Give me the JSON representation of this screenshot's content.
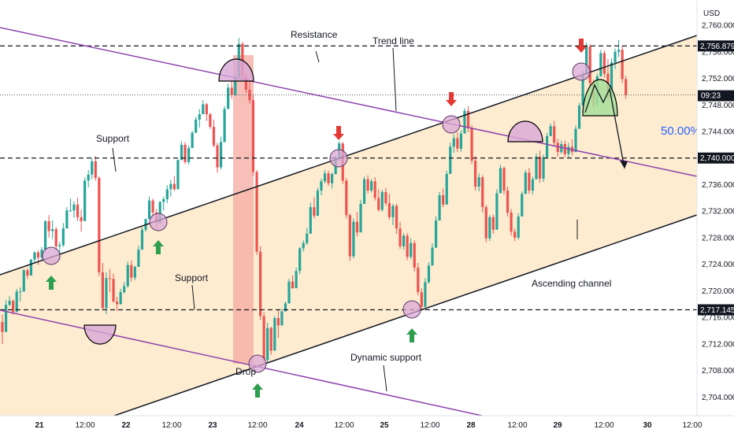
{
  "chart_data": {
    "type": "candlestick",
    "currency": "USD",
    "y_ticks": [
      "2,760.000",
      "2,756.000",
      "2,752.000",
      "2,748.000",
      "2,744.000",
      "2,740.000",
      "2,736.000",
      "2,732.000",
      "2,728.000",
      "2,724.000",
      "2,720.000",
      "2,716.000",
      "2,712.000",
      "2,708.000",
      "2,704.000"
    ],
    "y_range": [
      2701.2,
      2763.8
    ],
    "x_ticks": [
      "21",
      "12:00",
      "22",
      "12:00",
      "23",
      "12:00",
      "24",
      "12:00",
      "25",
      "12:00",
      "28",
      "12:00",
      "29",
      "12:00",
      "30",
      "12:00"
    ],
    "price_labels": [
      {
        "text": "2,756.879",
        "value": 2756.879,
        "style": "dark"
      },
      {
        "text": "2,740.000",
        "value": 2740.0,
        "style": "dark"
      },
      {
        "text": "2,717.145",
        "value": 2717.145,
        "style": "dark"
      }
    ],
    "current_price": {
      "value": 2749.5,
      "countdown": "09:23"
    },
    "percent_label": "50.00%",
    "horizontal_levels": [
      2756.879,
      2740.0,
      2717.145
    ],
    "annotations": [
      "Resistance",
      "Trend line",
      "Support",
      "Support",
      "Ascending channel",
      "Dynamic support",
      "Drop"
    ],
    "colors": {
      "up": "#26a69a",
      "down": "#ef5350",
      "channel_line": "#131722",
      "trend_line": "#8e44ad",
      "channel_fill": "#fde9c8",
      "highlight": "#f4a9a0",
      "marker_fill": "#d9a8d6",
      "projection_fill": "#a8e09a",
      "arrow_up": "#2e9e4f",
      "arrow_down": "#e53935",
      "percent_text": "#2962ff"
    },
    "candles": [
      [
        2715.3,
        2716.4,
        2712.0,
        2713.8
      ],
      [
        2713.8,
        2718.6,
        2713.8,
        2717.9
      ],
      [
        2717.9,
        2719.2,
        2717.7,
        2718.5
      ],
      [
        2718.5,
        2718.7,
        2716.4,
        2716.8
      ],
      [
        2716.8,
        2720.3,
        2716.8,
        2719.9
      ],
      [
        2719.9,
        2720.5,
        2718.4,
        2719.9
      ],
      [
        2719.9,
        2723.3,
        2719.9,
        2723.1
      ],
      [
        2723.1,
        2723.4,
        2721.8,
        2722.3
      ],
      [
        2722.3,
        2724.8,
        2722.3,
        2724.7
      ],
      [
        2724.7,
        2725.9,
        2724.3,
        2725.8
      ],
      [
        2725.8,
        2726.1,
        2723.9,
        2725.0
      ],
      [
        2725.0,
        2726.6,
        2724.7,
        2726.2
      ],
      [
        2726.2,
        2730.6,
        2726.2,
        2730.5
      ],
      [
        2730.5,
        2731.4,
        2728.0,
        2729.0
      ],
      [
        2729.0,
        2730.6,
        2727.8,
        2729.3
      ],
      [
        2729.3,
        2729.6,
        2726.1,
        2726.7
      ],
      [
        2726.7,
        2727.4,
        2724.7,
        2726.9
      ],
      [
        2726.9,
        2730.2,
        2726.6,
        2729.4
      ],
      [
        2729.4,
        2732.6,
        2729.4,
        2732.1
      ],
      [
        2732.1,
        2733.9,
        2731.9,
        2732.1
      ],
      [
        2732.1,
        2733.5,
        2731.0,
        2733.0
      ],
      [
        2733.0,
        2734.0,
        2730.5,
        2731.1
      ],
      [
        2731.1,
        2732.2,
        2728.9,
        2730.5
      ],
      [
        2730.5,
        2737.1,
        2730.5,
        2736.6
      ],
      [
        2736.6,
        2738.2,
        2735.6,
        2737.5
      ],
      [
        2737.5,
        2740.0,
        2736.8,
        2739.5
      ],
      [
        2739.5,
        2740.3,
        2736.6,
        2737.0
      ],
      [
        2737.0,
        2737.3,
        2722.2,
        2722.8
      ],
      [
        2722.8,
        2724.2,
        2717.2,
        2717.4
      ],
      [
        2717.4,
        2722.8,
        2716.5,
        2721.9
      ],
      [
        2721.9,
        2723.3,
        2719.8,
        2721.8
      ],
      [
        2721.8,
        2722.6,
        2718.2,
        2718.4
      ],
      [
        2718.4,
        2719.1,
        2717.0,
        2718.0
      ],
      [
        2718.0,
        2720.3,
        2717.9,
        2719.8
      ],
      [
        2719.8,
        2721.3,
        2719.6,
        2720.7
      ],
      [
        2720.7,
        2724.4,
        2720.5,
        2723.9
      ],
      [
        2723.9,
        2724.6,
        2721.4,
        2722.0
      ],
      [
        2722.0,
        2723.8,
        2721.6,
        2723.6
      ],
      [
        2723.6,
        2726.8,
        2723.6,
        2726.2
      ],
      [
        2726.2,
        2729.6,
        2726.2,
        2729.2
      ],
      [
        2729.2,
        2730.9,
        2728.9,
        2730.8
      ],
      [
        2730.8,
        2734.2,
        2730.8,
        2733.6
      ],
      [
        2733.6,
        2733.9,
        2731.1,
        2731.8
      ],
      [
        2731.8,
        2732.3,
        2729.4,
        2730.3
      ],
      [
        2730.3,
        2733.5,
        2730.1,
        2733.4
      ],
      [
        2733.4,
        2734.2,
        2732.1,
        2733.8
      ],
      [
        2733.8,
        2735.9,
        2733.2,
        2735.3
      ],
      [
        2735.3,
        2736.7,
        2734.2,
        2736.1
      ],
      [
        2736.1,
        2737.3,
        2735.0,
        2735.3
      ],
      [
        2735.3,
        2739.8,
        2735.3,
        2739.7
      ],
      [
        2739.7,
        2742.5,
        2739.7,
        2742.0
      ],
      [
        2742.0,
        2742.4,
        2739.1,
        2739.4
      ],
      [
        2739.4,
        2741.9,
        2739.0,
        2741.5
      ],
      [
        2741.5,
        2744.1,
        2741.5,
        2743.8
      ],
      [
        2743.8,
        2746.2,
        2743.8,
        2745.8
      ],
      [
        2745.8,
        2747.4,
        2744.6,
        2746.6
      ],
      [
        2746.6,
        2748.7,
        2746.6,
        2748.1
      ],
      [
        2748.1,
        2748.3,
        2745.6,
        2746.6
      ],
      [
        2746.6,
        2746.8,
        2744.4,
        2744.7
      ],
      [
        2744.7,
        2745.8,
        2741.6,
        2741.9
      ],
      [
        2741.9,
        2742.3,
        2737.8,
        2738.6
      ],
      [
        2738.6,
        2743.2,
        2738.3,
        2742.4
      ],
      [
        2742.4,
        2747.8,
        2742.4,
        2747.4
      ],
      [
        2747.4,
        2751.2,
        2747.4,
        2750.6
      ],
      [
        2750.6,
        2751.8,
        2748.9,
        2749.5
      ],
      [
        2749.5,
        2752.7,
        2749.4,
        2752.1
      ],
      [
        2752.1,
        2758.1,
        2752.1,
        2757.2
      ],
      [
        2757.2,
        2757.5,
        2751.8,
        2752.3
      ],
      [
        2752.3,
        2752.8,
        2749.8,
        2750.3
      ],
      [
        2750.3,
        2751.7,
        2748.2,
        2748.7
      ],
      [
        2748.7,
        2749.6,
        2737.3,
        2737.9
      ],
      [
        2737.9,
        2738.2,
        2725.4,
        2725.9
      ],
      [
        2725.9,
        2726.7,
        2715.6,
        2716.2
      ],
      [
        2716.2,
        2716.8,
        2708.8,
        2709.6
      ],
      [
        2709.6,
        2715.2,
        2709.2,
        2714.4
      ],
      [
        2714.4,
        2714.6,
        2710.4,
        2711.0
      ],
      [
        2711.0,
        2716.2,
        2711.0,
        2715.9
      ],
      [
        2715.9,
        2717.1,
        2712.9,
        2714.8
      ],
      [
        2714.8,
        2717.3,
        2714.8,
        2716.9
      ],
      [
        2716.9,
        2718.4,
        2716.9,
        2718.1
      ],
      [
        2718.1,
        2721.8,
        2718.1,
        2721.4
      ],
      [
        2721.4,
        2722.3,
        2720.3,
        2720.4
      ],
      [
        2720.4,
        2723.5,
        2720.4,
        2723.0
      ],
      [
        2723.0,
        2726.6,
        2722.5,
        2726.4
      ],
      [
        2726.4,
        2727.6,
        2725.9,
        2727.2
      ],
      [
        2727.2,
        2729.5,
        2726.9,
        2728.6
      ],
      [
        2728.6,
        2733.3,
        2728.6,
        2732.6
      ],
      [
        2732.6,
        2734.1,
        2730.9,
        2731.3
      ],
      [
        2731.3,
        2735.5,
        2731.3,
        2735.1
      ],
      [
        2735.1,
        2736.9,
        2734.4,
        2736.5
      ],
      [
        2736.5,
        2738.2,
        2736.2,
        2737.7
      ],
      [
        2737.7,
        2738.1,
        2735.8,
        2736.2
      ],
      [
        2736.2,
        2737.8,
        2735.4,
        2737.6
      ],
      [
        2737.6,
        2740.4,
        2737.5,
        2740.0
      ],
      [
        2740.0,
        2742.5,
        2739.6,
        2742.2
      ],
      [
        2742.2,
        2742.4,
        2736.1,
        2736.6
      ],
      [
        2736.6,
        2737.0,
        2730.9,
        2731.4
      ],
      [
        2731.4,
        2731.6,
        2724.5,
        2725.2
      ],
      [
        2725.2,
        2730.9,
        2724.9,
        2730.4
      ],
      [
        2730.4,
        2731.9,
        2728.2,
        2728.8
      ],
      [
        2728.8,
        2733.7,
        2728.8,
        2733.1
      ],
      [
        2733.1,
        2737.2,
        2733.1,
        2736.8
      ],
      [
        2736.8,
        2737.4,
        2734.7,
        2735.1
      ],
      [
        2735.1,
        2736.8,
        2734.8,
        2736.5
      ],
      [
        2736.5,
        2737.1,
        2733.6,
        2734.0
      ],
      [
        2734.0,
        2735.3,
        2731.9,
        2732.2
      ],
      [
        2732.2,
        2735.2,
        2731.9,
        2734.9
      ],
      [
        2734.9,
        2735.5,
        2732.8,
        2733.2
      ],
      [
        2733.2,
        2734.6,
        2730.7,
        2731.1
      ],
      [
        2731.1,
        2733.1,
        2729.9,
        2732.8
      ],
      [
        2732.8,
        2733.1,
        2728.6,
        2729.4
      ],
      [
        2729.4,
        2730.4,
        2726.3,
        2726.7
      ],
      [
        2726.7,
        2728.7,
        2726.2,
        2728.3
      ],
      [
        2728.3,
        2728.7,
        2724.6,
        2725.1
      ],
      [
        2725.1,
        2727.9,
        2724.8,
        2727.2
      ],
      [
        2727.2,
        2727.6,
        2722.9,
        2723.5
      ],
      [
        2723.5,
        2724.2,
        2719.3,
        2719.8
      ],
      [
        2719.8,
        2720.4,
        2717.0,
        2717.6
      ],
      [
        2717.6,
        2721.9,
        2717.5,
        2721.3
      ],
      [
        2721.3,
        2724.3,
        2721.1,
        2723.8
      ],
      [
        2723.8,
        2727.1,
        2723.8,
        2726.5
      ],
      [
        2726.5,
        2731.2,
        2726.5,
        2730.6
      ],
      [
        2730.6,
        2734.9,
        2730.6,
        2734.4
      ],
      [
        2734.4,
        2735.4,
        2732.6,
        2733.0
      ],
      [
        2733.0,
        2738.1,
        2733.0,
        2737.6
      ],
      [
        2737.6,
        2742.3,
        2737.6,
        2741.7
      ],
      [
        2741.7,
        2743.6,
        2740.8,
        2743.0
      ],
      [
        2743.0,
        2743.9,
        2740.9,
        2741.4
      ],
      [
        2741.4,
        2744.2,
        2740.9,
        2743.7
      ],
      [
        2743.7,
        2747.5,
        2743.7,
        2747.1
      ],
      [
        2747.1,
        2747.8,
        2743.9,
        2744.5
      ],
      [
        2744.5,
        2745.0,
        2739.1,
        2739.6
      ],
      [
        2739.6,
        2740.3,
        2735.1,
        2735.7
      ],
      [
        2735.7,
        2737.7,
        2735.0,
        2737.1
      ],
      [
        2737.1,
        2737.4,
        2731.8,
        2732.6
      ],
      [
        2732.6,
        2732.9,
        2727.3,
        2727.9
      ],
      [
        2727.9,
        2731.4,
        2727.5,
        2731.1
      ],
      [
        2731.1,
        2731.5,
        2728.6,
        2729.2
      ],
      [
        2729.2,
        2735.3,
        2729.2,
        2734.7
      ],
      [
        2734.7,
        2739.0,
        2734.7,
        2738.5
      ],
      [
        2738.5,
        2738.7,
        2734.5,
        2735.1
      ],
      [
        2735.1,
        2735.7,
        2731.2,
        2731.8
      ],
      [
        2731.8,
        2732.3,
        2728.3,
        2728.9
      ],
      [
        2728.9,
        2729.4,
        2727.5,
        2728.0
      ],
      [
        2728.0,
        2731.7,
        2727.7,
        2731.2
      ],
      [
        2731.2,
        2735.0,
        2731.2,
        2734.6
      ],
      [
        2734.6,
        2738.2,
        2734.6,
        2737.8
      ],
      [
        2737.8,
        2738.5,
        2734.6,
        2735.1
      ],
      [
        2735.1,
        2737.2,
        2734.5,
        2736.8
      ],
      [
        2736.8,
        2740.7,
        2736.8,
        2740.2
      ],
      [
        2740.2,
        2741.1,
        2736.3,
        2736.9
      ],
      [
        2736.9,
        2740.5,
        2736.4,
        2740.1
      ],
      [
        2740.1,
        2743.8,
        2740.1,
        2743.3
      ],
      [
        2743.3,
        2745.2,
        2743.3,
        2744.8
      ],
      [
        2744.8,
        2745.6,
        2741.7,
        2742.3
      ],
      [
        2742.3,
        2742.9,
        2740.2,
        2740.9
      ],
      [
        2740.9,
        2742.6,
        2740.6,
        2742.1
      ],
      [
        2742.1,
        2742.6,
        2740.1,
        2740.6
      ],
      [
        2740.6,
        2742.3,
        2740.1,
        2741.7
      ],
      [
        2741.7,
        2742.8,
        2740.4,
        2740.9
      ],
      [
        2740.9,
        2744.9,
        2740.9,
        2744.4
      ],
      [
        2744.4,
        2748.3,
        2744.4,
        2747.9
      ],
      [
        2747.9,
        2753.1,
        2747.9,
        2752.6
      ],
      [
        2752.6,
        2757.4,
        2752.6,
        2756.8
      ],
      [
        2756.8,
        2757.2,
        2750.8,
        2751.3
      ],
      [
        2751.3,
        2751.8,
        2747.4,
        2747.9
      ],
      [
        2747.9,
        2752.7,
        2747.6,
        2752.3
      ],
      [
        2752.3,
        2756.3,
        2752.3,
        2755.8
      ],
      [
        2755.8,
        2756.2,
        2752.1,
        2752.7
      ],
      [
        2752.7,
        2754.9,
        2748.6,
        2749.1
      ],
      [
        2749.1,
        2755.0,
        2748.9,
        2754.4
      ],
      [
        2754.4,
        2756.5,
        2753.4,
        2756.0
      ],
      [
        2756.0,
        2757.8,
        2755.2,
        2756.3
      ],
      [
        2756.3,
        2756.9,
        2751.3,
        2751.9
      ],
      [
        2751.9,
        2752.4,
        2748.9,
        2749.5
      ]
    ]
  }
}
